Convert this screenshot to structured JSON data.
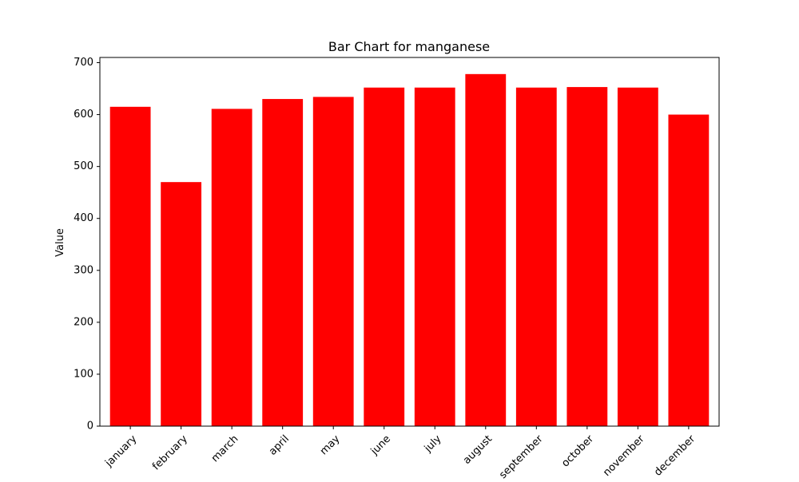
{
  "chart_data": {
    "type": "bar",
    "title": "Bar Chart for manganese",
    "xlabel": "",
    "ylabel": "Value",
    "categories": [
      "january",
      "february",
      "march",
      "april",
      "may",
      "june",
      "july",
      "august",
      "september",
      "october",
      "november",
      "december"
    ],
    "values": [
      615,
      470,
      611,
      630,
      634,
      652,
      652,
      678,
      652,
      653,
      652,
      600
    ],
    "ylim": [
      0,
      710
    ],
    "yticks": [
      0,
      100,
      200,
      300,
      400,
      500,
      600,
      700
    ],
    "bar_color": "#ff0000",
    "grid": false,
    "legend": "none"
  }
}
